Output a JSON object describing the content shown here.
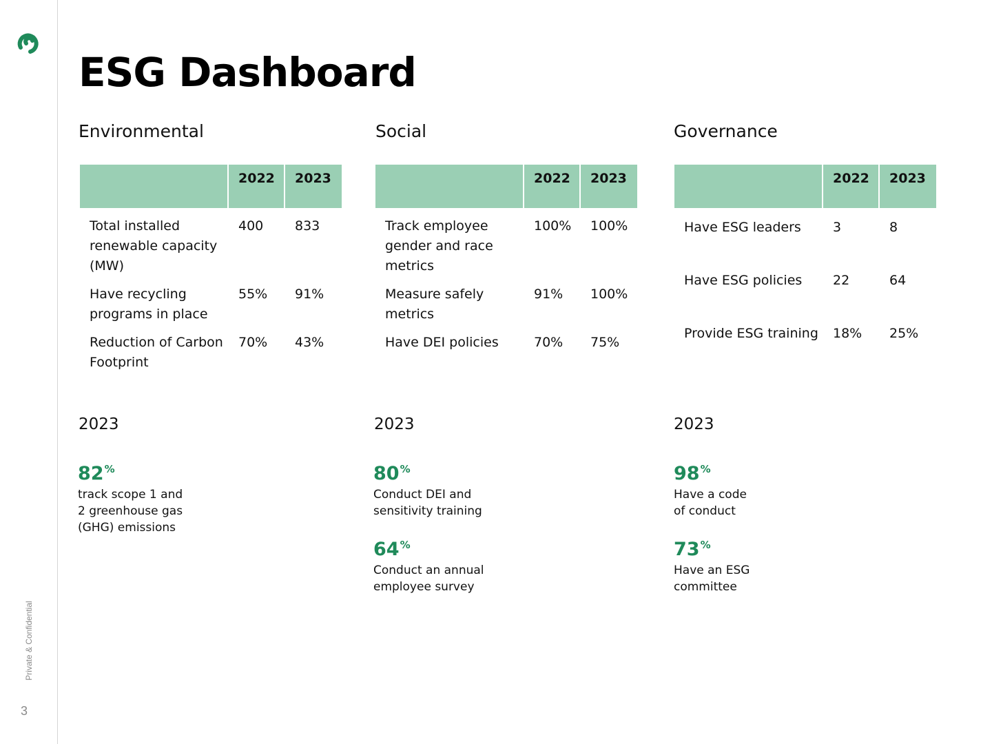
{
  "title": "ESG Dashboard",
  "sidebar": {
    "confidential": "Private & Confidential",
    "page_number": "3",
    "logo_icon": "brand-link-icon",
    "accent_color": "#1f8a5a"
  },
  "table_header_color": "#9acfb4",
  "sections": {
    "environmental": {
      "title": "Environmental",
      "headers": [
        "",
        "2022",
        "2023"
      ],
      "rows": [
        {
          "label": "Total installed renewable capacity (MW)",
          "v2022": "400",
          "v2023": "833"
        },
        {
          "label": "Have recycling programs in place",
          "v2022": "55%",
          "v2023": "91%"
        },
        {
          "label": "Reduction of Carbon Footprint",
          "v2022": "70%",
          "v2023": "43%"
        }
      ],
      "year": "2023",
      "stats": [
        {
          "value": "82",
          "unit": "%",
          "desc": "track scope 1 and 2 greenhouse gas (GHG) emissions"
        }
      ]
    },
    "social": {
      "title": "Social",
      "headers": [
        "",
        "2022",
        "2023"
      ],
      "rows": [
        {
          "label": "Track employee gender and race metrics",
          "v2022": "100%",
          "v2023": "100%"
        },
        {
          "label": "Measure safely metrics",
          "v2022": "91%",
          "v2023": "100%"
        },
        {
          "label": "Have DEI policies",
          "v2022": "70%",
          "v2023": "75%"
        }
      ],
      "year": "2023",
      "stats": [
        {
          "value": "80",
          "unit": "%",
          "desc": "Conduct DEI and sensitivity training"
        },
        {
          "value": "64",
          "unit": "%",
          "desc": "Conduct an annual employee survey"
        }
      ]
    },
    "governance": {
      "title": "Governance",
      "headers": [
        "",
        "2022",
        "2023"
      ],
      "rows": [
        {
          "label": "Have ESG leaders",
          "v2022": "3",
          "v2023": "8"
        },
        {
          "label": "Have ESG policies",
          "v2022": "22",
          "v2023": "64"
        },
        {
          "label": "Provide ESG training",
          "v2022": "18%",
          "v2023": "25%"
        }
      ],
      "year": "2023",
      "stats": [
        {
          "value": "98",
          "unit": "%",
          "desc": "Have a code of conduct"
        },
        {
          "value": "73",
          "unit": "%",
          "desc": "Have an ESG committee"
        }
      ]
    }
  }
}
